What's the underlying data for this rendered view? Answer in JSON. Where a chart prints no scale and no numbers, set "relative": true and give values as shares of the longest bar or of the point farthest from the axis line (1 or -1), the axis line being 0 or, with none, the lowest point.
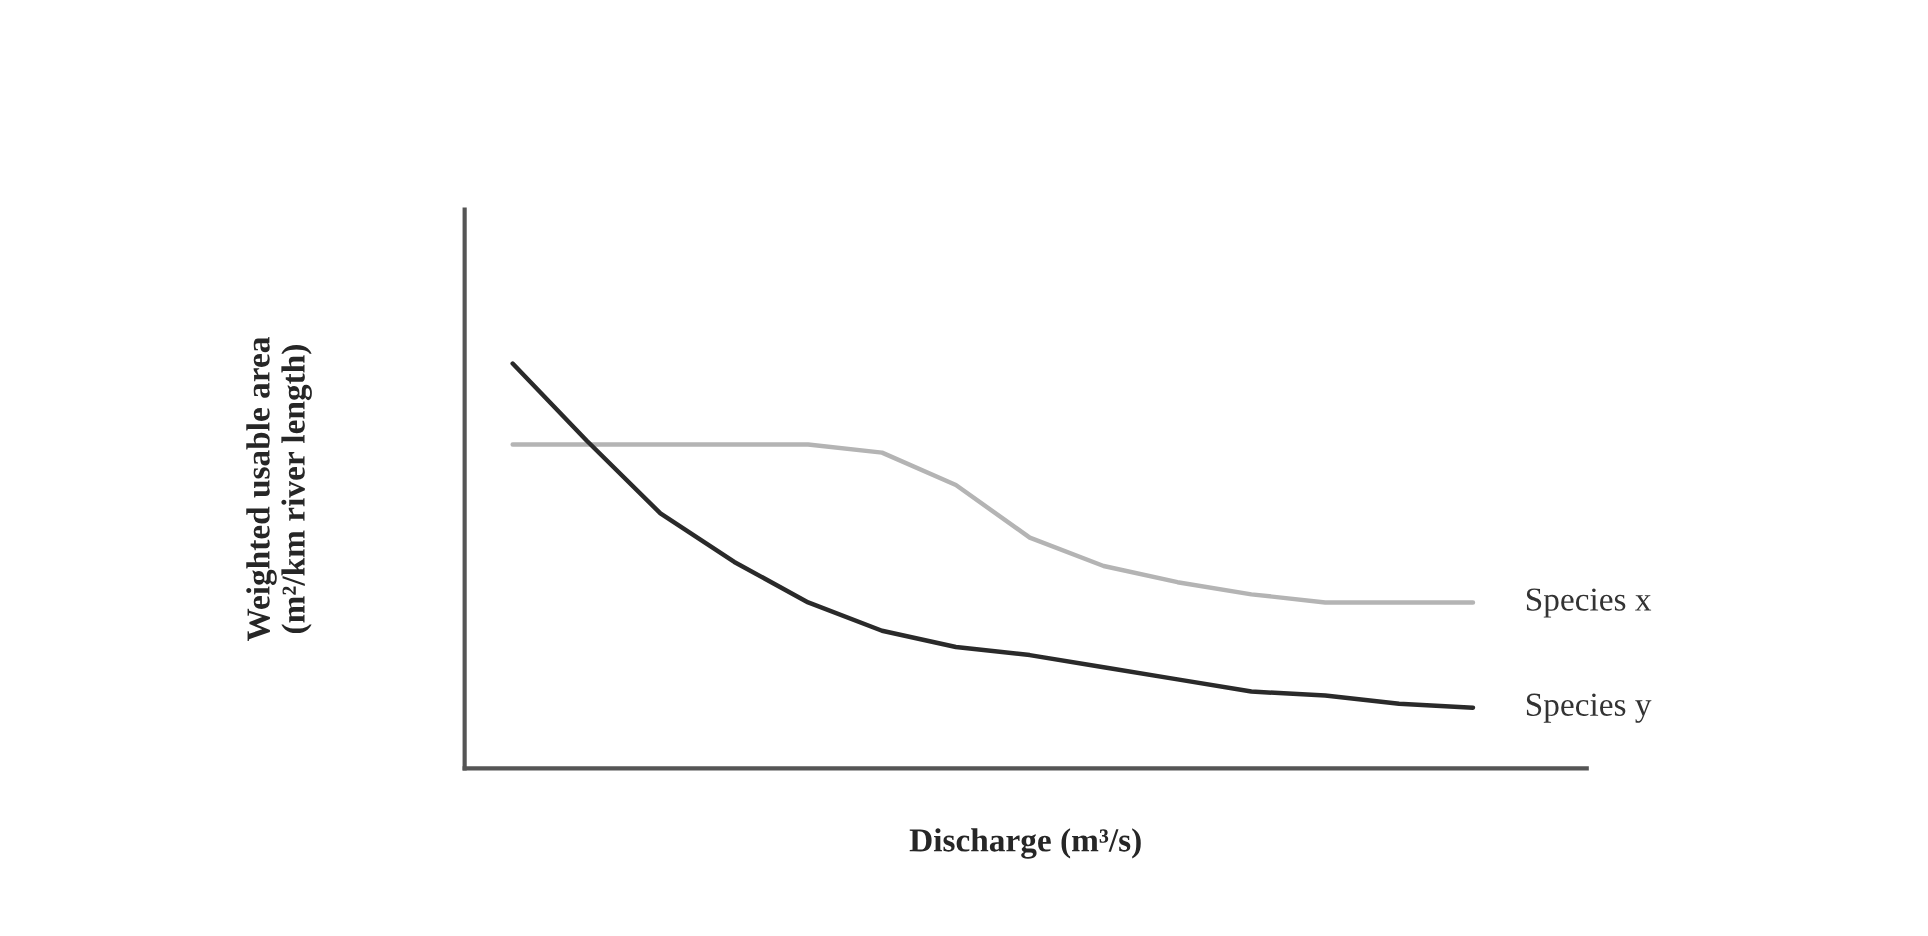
{
  "chart_data": {
    "type": "line",
    "relative": true,
    "xlabel": "Discharge (m³/s)",
    "ylabel": "Weighted usable area\n(m²/km river length)",
    "categories": [
      null,
      null,
      null,
      null,
      null,
      null,
      null,
      null,
      null,
      null,
      null,
      null,
      null,
      null
    ],
    "series": [
      {
        "name": "Species x",
        "color": "#b4b4b4",
        "values": [
          0.8,
          0.8,
          0.8,
          0.8,
          0.8,
          0.78,
          0.7,
          0.57,
          0.5,
          0.46,
          0.43,
          0.41,
          0.41,
          0.41
        ]
      },
      {
        "name": "Species y",
        "color": "#2a2a2a",
        "values": [
          1,
          0.81,
          0.63,
          0.51,
          0.41,
          0.34,
          0.3,
          0.28,
          0.25,
          0.22,
          0.19,
          0.18,
          0.16,
          0.15
        ]
      }
    ],
    "marker": "none",
    "line_style": "solid"
  }
}
